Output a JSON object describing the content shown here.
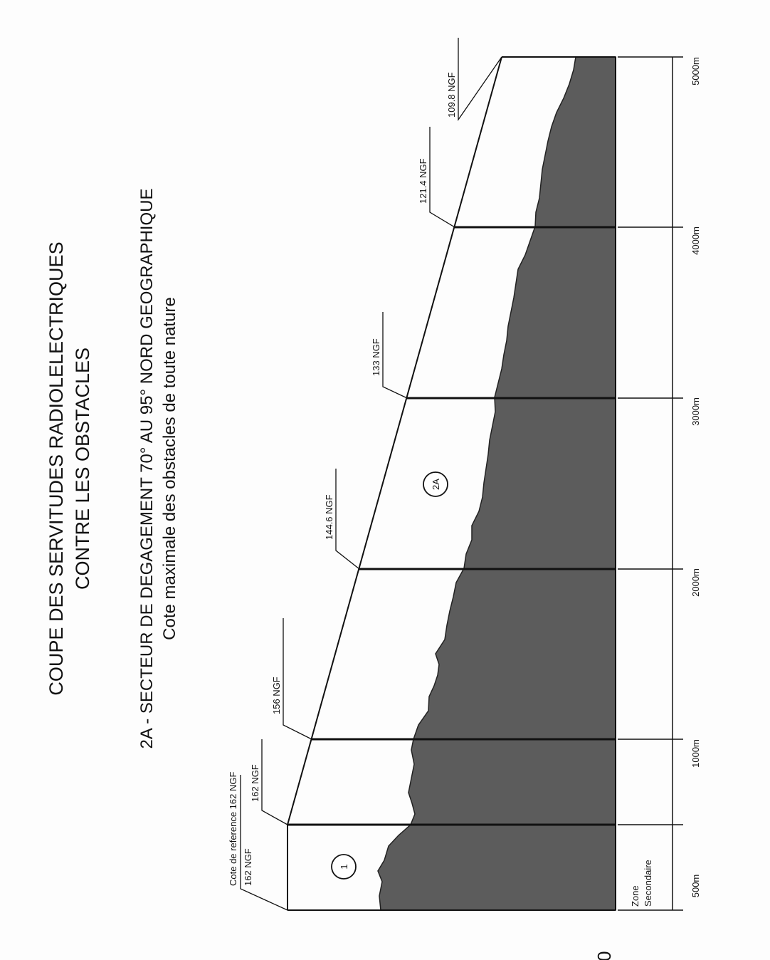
{
  "title": {
    "line1": "COUPE DES SERVITUDES RADIOLELECTRIQUES",
    "line2": "CONTRE LES OBSTACLES"
  },
  "subtitle": {
    "line1": "2A - SECTEUR DE DEGAGEMENT 70° AU 95° NORD GEOGRAPHIQUE",
    "line2": "Cote maximale des obstacles de toute nature"
  },
  "labels": {
    "cote_ref": "Cote de reference 162 NGF",
    "ngf_162a": "162 NGF",
    "ngf_162b": "162 NGF",
    "ngf_156": "156 NGF",
    "ngf_1446": "144.6 NGF",
    "ngf_133": "133 NGF",
    "ngf_1214": "121.4 NGF",
    "ngf_1098": "109.8 NGF"
  },
  "markers": {
    "zone1": "1",
    "zone2a": "2A"
  },
  "axis": {
    "zero": "0",
    "d500": "500m",
    "d1000": "1000m",
    "d2000": "2000m",
    "d3000": "3000m",
    "d4000": "4000m",
    "d5000": "5000m",
    "zone_line1": "Zone",
    "zone_line2": "Secondaire"
  },
  "colors": {
    "terrain": "#5c5c5c",
    "ink": "#111111"
  }
}
